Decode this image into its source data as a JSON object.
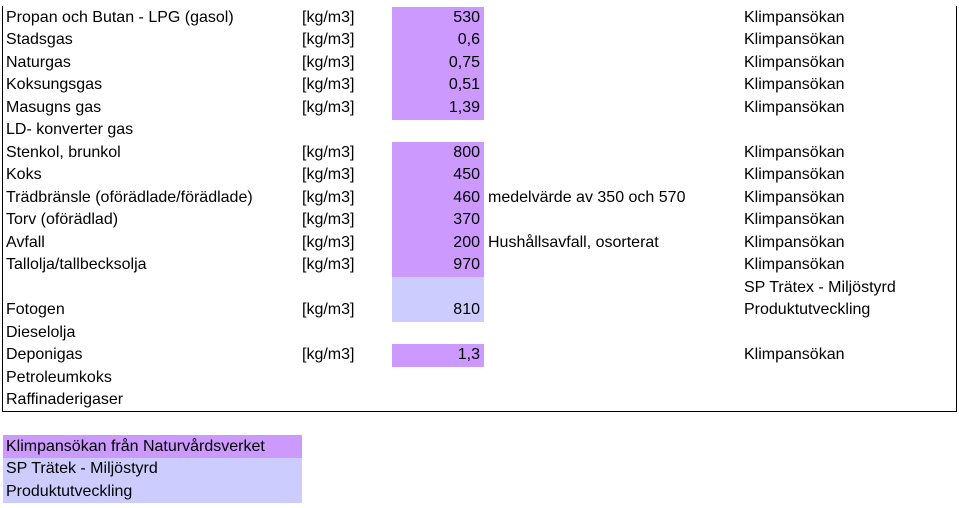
{
  "table": {
    "rows": [
      {
        "name": "Propan och Butan - LPG (gasol)",
        "unit": "[kg/m3]",
        "value": "530",
        "source": "Klimpansökan",
        "fill": "#cc99ff"
      },
      {
        "name": "Stadsgas",
        "unit": "[kg/m3]",
        "value": "0,6",
        "source": "Klimpansökan",
        "fill": "#cc99ff"
      },
      {
        "name": "Naturgas",
        "unit": "[kg/m3]",
        "value": "0,75",
        "source": "Klimpansökan",
        "fill": "#cc99ff"
      },
      {
        "name": "Koksungsgas",
        "unit": "[kg/m3]",
        "value": "0,51",
        "source": "Klimpansökan",
        "fill": "#cc99ff"
      },
      {
        "name": "Masugns gas",
        "unit": "[kg/m3]",
        "value": "1,39",
        "source": "Klimpansökan",
        "fill": "#cc99ff"
      },
      {
        "name": "LD- konverter gas"
      },
      {
        "name": "Stenkol, brunkol",
        "unit": "[kg/m3]",
        "value": "800",
        "source": "Klimpansökan",
        "fill": "#cc99ff"
      },
      {
        "name": "Koks",
        "unit": "[kg/m3]",
        "value": "450",
        "source": "Klimpansökan",
        "fill": "#cc99ff"
      },
      {
        "name": "Trädbränsle (oförädlade/förädlade)",
        "unit": "[kg/m3]",
        "value": "460",
        "note": "medelvärde av 350 och 570",
        "source": "Klimpansökan",
        "fill": "#cc99ff"
      },
      {
        "name": "Torv (oförädlad)",
        "unit": "[kg/m3]",
        "value": "370",
        "source": "Klimpansökan",
        "fill": "#cc99ff"
      },
      {
        "name": "Avfall",
        "unit": "[kg/m3]",
        "value": "200",
        "note": "Hushållsavfall, osorterat",
        "source": "Klimpansökan",
        "fill": "#cc99ff"
      },
      {
        "name": "Tallolja/tallbecksolja",
        "unit": "[kg/m3]",
        "value": "970",
        "source": "Klimpansökan",
        "fill": "#cc99ff"
      },
      {
        "source": "SP Trätex - Miljöstyrd",
        "fill": "#ccccff"
      },
      {
        "name": "Fotogen",
        "unit": "[kg/m3]",
        "value": "810",
        "source": "Produktutveckling",
        "fill": "#ccccff"
      },
      {
        "name": "Dieselolja"
      },
      {
        "name": "Deponigas",
        "unit": "[kg/m3]",
        "value": "1,3",
        "source": "Klimpansökan",
        "fill": "#cc99ff"
      },
      {
        "name": "Petroleumkoks"
      },
      {
        "name": "Raffinaderigaser"
      }
    ]
  },
  "legend": [
    {
      "label": "Klimpansökan från Naturvårdsverket",
      "fill": "#cc99ff"
    },
    {
      "label": "SP Trätek - Miljöstyrd",
      "fill": "#ccccff"
    },
    {
      "label": "Produktutveckling",
      "fill": "#ccccff"
    }
  ]
}
